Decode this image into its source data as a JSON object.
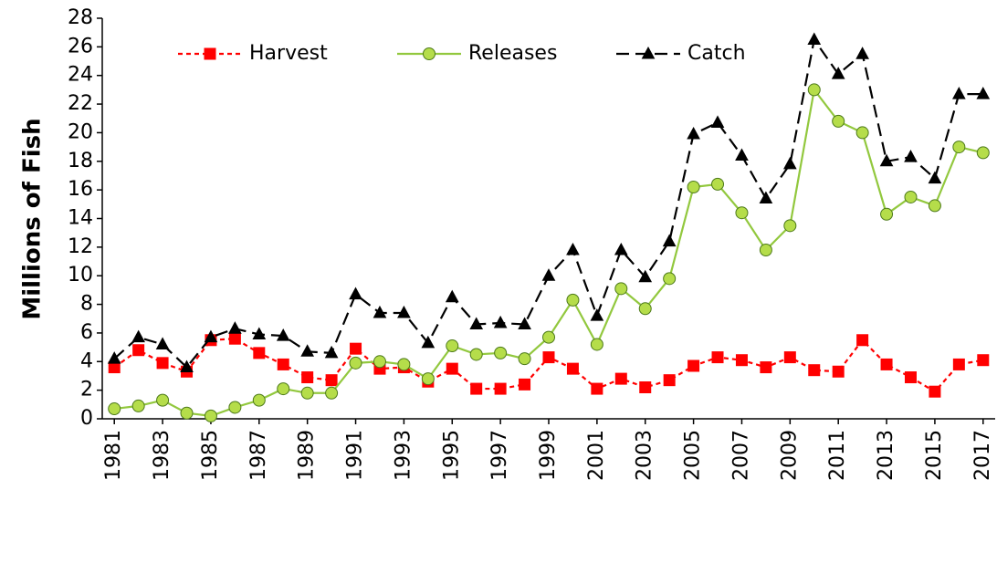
{
  "chart_data": {
    "type": "line",
    "ylabel": "Millions of Fish",
    "x": [
      1981,
      1982,
      1983,
      1984,
      1985,
      1986,
      1987,
      1988,
      1989,
      1990,
      1991,
      1992,
      1993,
      1994,
      1995,
      1996,
      1997,
      1998,
      1999,
      2000,
      2001,
      2002,
      2003,
      2004,
      2005,
      2006,
      2007,
      2008,
      2009,
      2010,
      2011,
      2012,
      2013,
      2014,
      2015,
      2016,
      2017
    ],
    "xlim": [
      1980.5,
      2017.5
    ],
    "xticks": [
      1981,
      1983,
      1985,
      1987,
      1989,
      1991,
      1993,
      1995,
      1997,
      1999,
      2001,
      2003,
      2005,
      2007,
      2009,
      2011,
      2013,
      2015,
      2017
    ],
    "ylim": [
      0,
      28
    ],
    "yticks": [
      0,
      2,
      4,
      6,
      8,
      10,
      12,
      14,
      16,
      18,
      20,
      22,
      24,
      26,
      28
    ],
    "legend": "top-left",
    "series": [
      {
        "name": "Harvest",
        "color": "#ff0000",
        "marker": "square",
        "linestyle": "dashed",
        "values": [
          3.6,
          4.8,
          3.9,
          3.3,
          5.5,
          5.6,
          4.6,
          3.8,
          2.9,
          2.7,
          4.9,
          3.5,
          3.6,
          2.6,
          3.5,
          2.1,
          2.1,
          2.4,
          4.3,
          3.5,
          2.1,
          2.8,
          2.2,
          2.7,
          3.7,
          4.3,
          4.1,
          3.6,
          4.3,
          3.4,
          3.3,
          5.5,
          3.8,
          2.9,
          1.9,
          3.8,
          4.1
        ]
      },
      {
        "name": "Releases",
        "color": "#92c83e",
        "marker": "circle",
        "linestyle": "solid",
        "values": [
          0.7,
          0.9,
          1.3,
          0.4,
          0.2,
          0.8,
          1.3,
          2.1,
          1.8,
          1.8,
          3.9,
          4.0,
          3.8,
          2.8,
          5.1,
          4.5,
          4.6,
          4.2,
          5.7,
          8.3,
          5.2,
          9.1,
          7.7,
          9.8,
          16.2,
          16.4,
          14.4,
          11.8,
          13.5,
          23.0,
          20.8,
          20.0,
          14.3,
          15.5,
          14.9,
          19.0,
          18.6
        ]
      },
      {
        "name": "Catch",
        "color": "#000000",
        "marker": "triangle",
        "linestyle": "long-dashed",
        "values": [
          4.2,
          5.7,
          5.2,
          3.6,
          5.7,
          6.3,
          5.9,
          5.8,
          4.7,
          4.6,
          8.7,
          7.4,
          7.4,
          5.3,
          8.5,
          6.6,
          6.7,
          6.6,
          10.0,
          11.8,
          7.2,
          11.8,
          9.9,
          12.4,
          19.9,
          20.7,
          18.4,
          15.4,
          17.8,
          26.5,
          24.1,
          25.5,
          18.0,
          18.3,
          16.8,
          22.7,
          22.7
        ]
      }
    ]
  }
}
